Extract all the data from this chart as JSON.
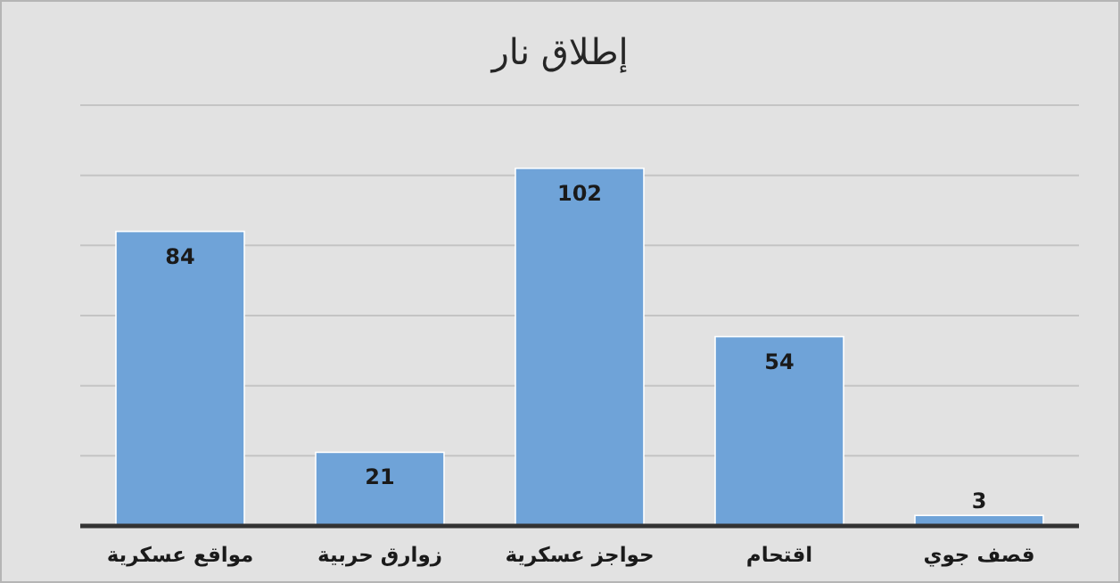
{
  "chart_data": {
    "type": "bar",
    "title": "إطلاق نار",
    "categories": [
      "مواقع عسكرية",
      "زوارق حربية",
      "حواجز عسكرية",
      "اقتحام",
      "قصف جوي"
    ],
    "values": [
      84,
      21,
      102,
      54,
      3
    ],
    "color": "#6fa3d8",
    "yticks": [
      {
        "value": 0,
        "label": null
      },
      {
        "value": 20,
        "label": null
      },
      {
        "value": 40,
        "label": null
      },
      {
        "value": 60,
        "label": null
      },
      {
        "value": 80,
        "label": null
      },
      {
        "value": 100,
        "label": null
      },
      {
        "value": 120,
        "label": null
      }
    ],
    "grid": "y",
    "tick_labels": "x",
    "data_labels": true
  }
}
